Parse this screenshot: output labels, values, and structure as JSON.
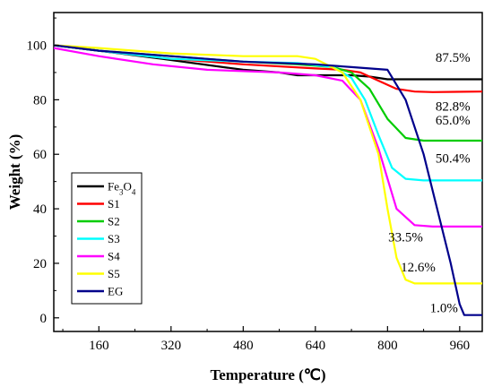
{
  "chart_data": {
    "type": "line",
    "xlabel": "Temperature (℃)",
    "ylabel": "Weight (%)",
    "xlim": [
      60,
      1010
    ],
    "ylim": [
      -5,
      112
    ],
    "xticks": [
      160,
      320,
      480,
      640,
      800,
      960
    ],
    "yticks": [
      0,
      20,
      40,
      60,
      80,
      100
    ],
    "legend_position": "bottom-left",
    "grid": false,
    "series": [
      {
        "name": "Fe3O4",
        "label_parts": [
          "Fe",
          "3",
          "O",
          "4"
        ],
        "color": "#000000",
        "x": [
          60,
          160,
          300,
          480,
          560,
          600,
          640,
          680,
          720,
          760,
          800,
          1010
        ],
        "y": [
          100,
          98,
          95,
          91,
          90,
          89,
          89,
          89,
          89,
          88.5,
          87.5,
          87.5
        ]
      },
      {
        "name": "S1",
        "color": "#ff0000",
        "x": [
          60,
          160,
          320,
          480,
          640,
          700,
          740,
          780,
          820,
          860,
          900,
          1010
        ],
        "y": [
          100,
          98,
          95,
          93,
          91.5,
          91,
          90,
          87,
          84,
          83,
          82.8,
          83
        ]
      },
      {
        "name": "S2",
        "color": "#00cc00",
        "x": [
          60,
          160,
          320,
          480,
          600,
          680,
          720,
          760,
          800,
          840,
          880,
          1010
        ],
        "y": [
          100,
          98,
          96,
          94,
          93,
          92,
          90,
          84,
          73,
          66,
          65,
          65
        ]
      },
      {
        "name": "S3",
        "color": "#00ffff",
        "x": [
          60,
          160,
          320,
          480,
          600,
          680,
          720,
          750,
          780,
          810,
          840,
          880,
          1010
        ],
        "y": [
          100,
          98,
          95,
          94,
          93.5,
          92,
          88,
          80,
          67,
          55,
          51,
          50.4,
          50.4
        ]
      },
      {
        "name": "S4",
        "color": "#ff00ff",
        "x": [
          60,
          160,
          280,
          400,
          560,
          640,
          700,
          740,
          780,
          820,
          860,
          900,
          1010
        ],
        "y": [
          99,
          96,
          93,
          91,
          90,
          89,
          87,
          80,
          62,
          40,
          34,
          33.5,
          33.5
        ]
      },
      {
        "name": "S5",
        "color": "#ffff00",
        "x": [
          60,
          160,
          320,
          480,
          600,
          640,
          700,
          740,
          780,
          800,
          820,
          840,
          860,
          1010
        ],
        "y": [
          100,
          99,
          97,
          96,
          96,
          95,
          90,
          80,
          60,
          40,
          22,
          14,
          12.6,
          12.6
        ]
      },
      {
        "name": "EG",
        "color": "#00008b",
        "x": [
          60,
          160,
          320,
          480,
          640,
          720,
          800,
          840,
          880,
          910,
          940,
          960,
          970,
          1010
        ],
        "y": [
          100,
          98,
          96,
          94,
          93,
          92,
          91,
          80,
          60,
          40,
          20,
          5,
          1.0,
          1.0
        ]
      }
    ],
    "annotations": [
      {
        "text": "87.5%",
        "x": 945,
        "y": 94
      },
      {
        "text": "82.8%",
        "x": 945,
        "y": 76
      },
      {
        "text": "65.0%",
        "x": 945,
        "y": 71
      },
      {
        "text": "50.4%",
        "x": 945,
        "y": 57
      },
      {
        "text": "33.5%",
        "x": 840,
        "y": 28
      },
      {
        "text": "12.6%",
        "x": 868,
        "y": 17
      },
      {
        "text": "1.0%",
        "x": 925,
        "y": 2
      }
    ]
  }
}
